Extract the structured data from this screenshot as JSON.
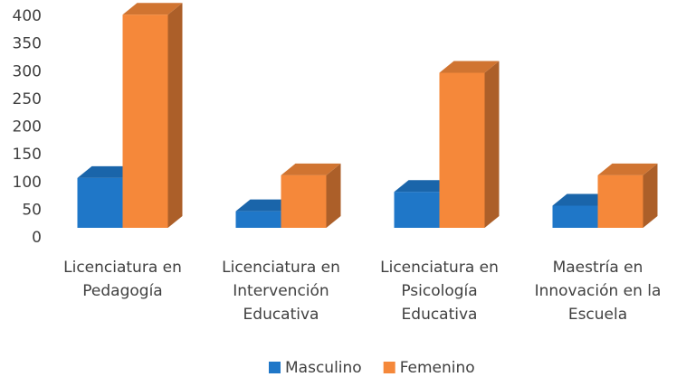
{
  "chart_data": {
    "type": "bar3d",
    "categories": [
      "Licenciatura en\nPedagogía",
      "Licenciatura en\nIntervención\nEducativa",
      "Licenciatura en\nPsicología\nEducativa",
      "Maestría en\nInnovación en la\nEscuela"
    ],
    "series": [
      {
        "name": "Masculino",
        "color": "#1f77c8",
        "values": [
          90,
          30,
          65,
          40
        ]
      },
      {
        "name": "Femenino",
        "color": "#f5883a",
        "values": [
          385,
          95,
          280,
          95
        ]
      }
    ],
    "ylim": [
      0,
      400
    ],
    "yticks": [
      0,
      50,
      100,
      150,
      200,
      250,
      300,
      350,
      400
    ],
    "legend": "bottom"
  }
}
